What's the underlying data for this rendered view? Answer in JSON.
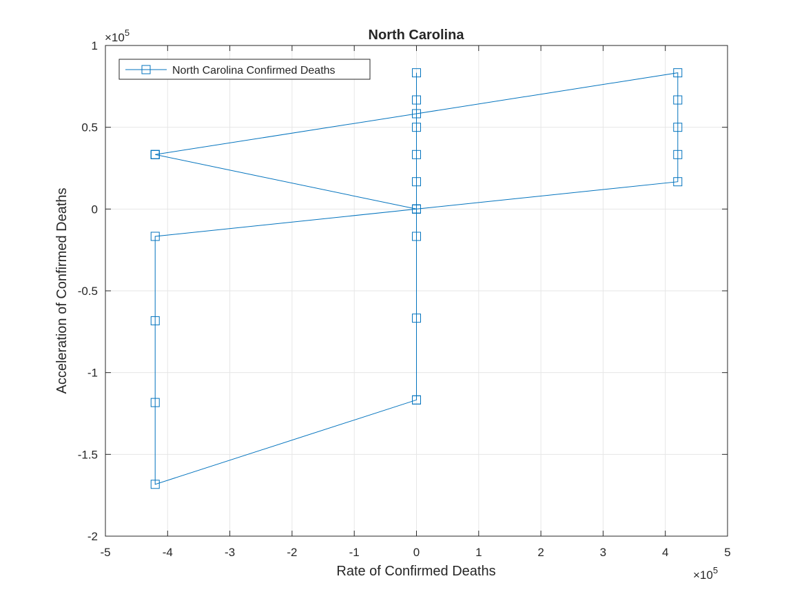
{
  "chart_data": {
    "type": "line",
    "title": "North Carolina",
    "xlabel": "Rate of Confirmed Deaths",
    "ylabel": "Acceleration of Confirmed Deaths",
    "x_exponent": "×10",
    "x_exponent_power": "5",
    "y_exponent": "×10",
    "y_exponent_power": "5",
    "xlim": [
      -5,
      5
    ],
    "ylim": [
      -2,
      1
    ],
    "xticks": [
      "-5",
      "-4",
      "-3",
      "-2",
      "-1",
      "0",
      "1",
      "2",
      "3",
      "4",
      "5"
    ],
    "yticks": [
      "-2",
      "-1.5",
      "-1",
      "-0.5",
      "0",
      "0.5",
      "1"
    ],
    "grid": true,
    "legend_position": "top-left",
    "series": [
      {
        "name": "North Carolina Confirmed Deaths",
        "color": "#0072BD",
        "marker": "square",
        "x": [
          0,
          0,
          0,
          0,
          0,
          0,
          0,
          0,
          0,
          0,
          0,
          0,
          -4.2,
          -4.2,
          -4.2,
          -4.2,
          4.2,
          4.2,
          4.2,
          4.2,
          4.2,
          0,
          -4.2,
          -4.2,
          -4.2,
          0,
          0
        ],
        "y": [
          0,
          0,
          0.167,
          0.333,
          0.5,
          0.667,
          0.833,
          -0.167,
          0,
          -0.667,
          -1.167,
          -1.167,
          -1.683,
          -1.183,
          -0.683,
          -0.167,
          0.167,
          0.333,
          0.5,
          0.667,
          0.833,
          0.583,
          0.333,
          0.333,
          0.333,
          0,
          0
        ]
      }
    ]
  }
}
